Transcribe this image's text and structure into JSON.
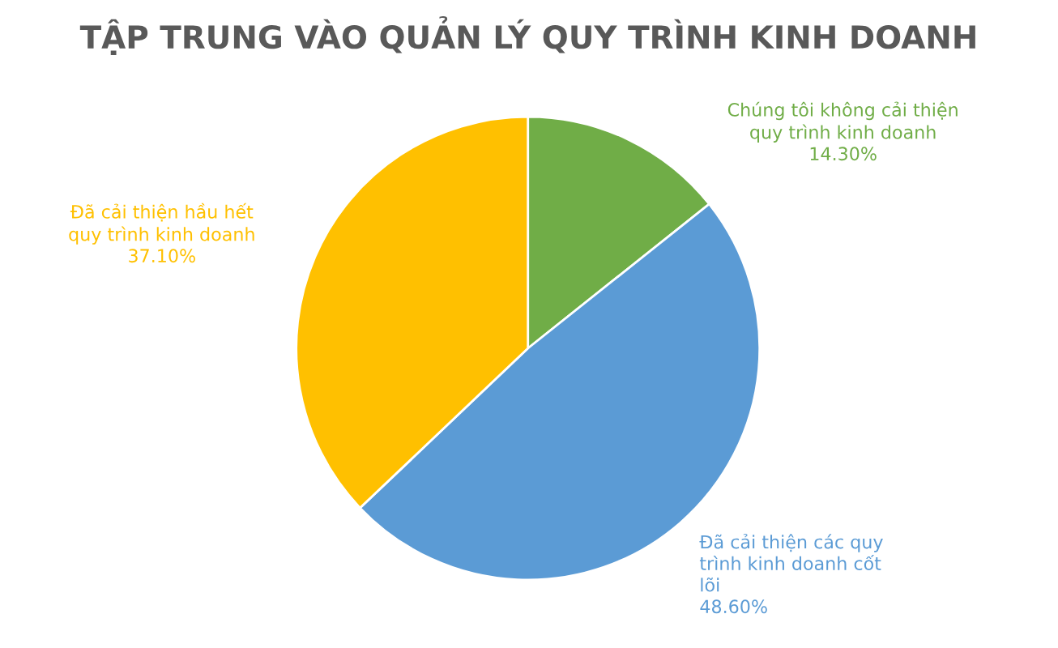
{
  "chart_data": {
    "type": "pie",
    "title": "TẬP TRUNG VÀO QUẢN LÝ QUY TRÌNH KINH DOANH",
    "categories": [
      "Chúng tôi không cải thiện\nquy trình kinh doanh",
      "Đã cải thiện các quy\ntrình kinh doanh cốt\nlõi",
      "Đã cải thiện hầu hết\nquy trình kinh doanh"
    ],
    "values": [
      14.3,
      48.6,
      37.1
    ],
    "value_labels": [
      "14.30%",
      "48.60%",
      "37.10%"
    ],
    "colors": [
      "#70ad47",
      "#5b9bd5",
      "#ffc000"
    ]
  }
}
